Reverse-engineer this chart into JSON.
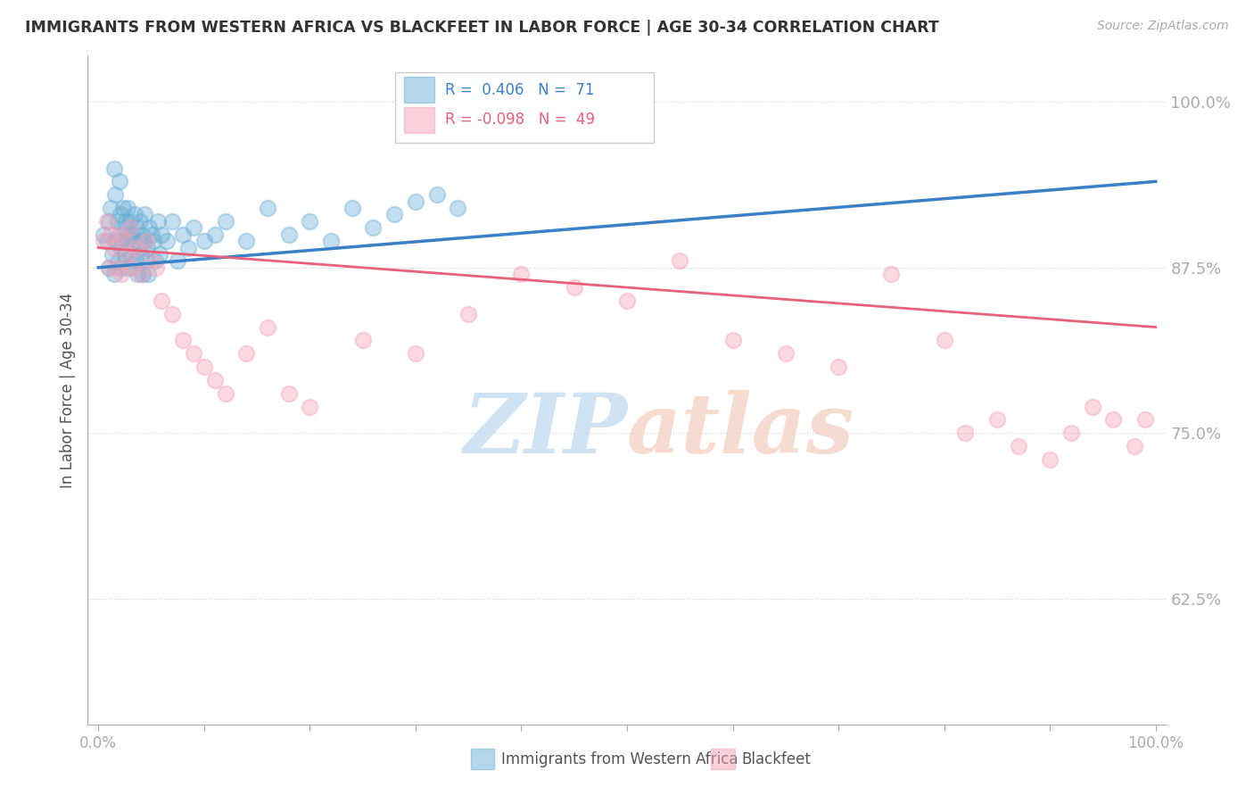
{
  "title": "IMMIGRANTS FROM WESTERN AFRICA VS BLACKFEET IN LABOR FORCE | AGE 30-34 CORRELATION CHART",
  "source": "Source: ZipAtlas.com",
  "ylabel": "In Labor Force | Age 30-34",
  "legend_label1": "Immigrants from Western Africa",
  "legend_label2": "Blackfeet",
  "R1": 0.406,
  "N1": 71,
  "R2": -0.098,
  "N2": 49,
  "color_blue": "#6aaed6",
  "color_pink": "#f4a0b5",
  "ylim_min": 0.53,
  "ylim_max": 1.035,
  "xlim_min": -0.01,
  "xlim_max": 1.01,
  "yticks": [
    0.625,
    0.75,
    0.875,
    1.0
  ],
  "ytick_labels": [
    "62.5%",
    "75.0%",
    "87.5%",
    "100.0%"
  ],
  "blue_x": [
    0.005,
    0.008,
    0.01,
    0.01,
    0.012,
    0.013,
    0.015,
    0.015,
    0.016,
    0.017,
    0.018,
    0.019,
    0.02,
    0.02,
    0.021,
    0.022,
    0.022,
    0.023,
    0.024,
    0.025,
    0.025,
    0.026,
    0.027,
    0.028,
    0.028,
    0.029,
    0.03,
    0.031,
    0.032,
    0.033,
    0.034,
    0.035,
    0.036,
    0.037,
    0.038,
    0.039,
    0.04,
    0.041,
    0.042,
    0.043,
    0.044,
    0.045,
    0.046,
    0.047,
    0.048,
    0.05,
    0.052,
    0.054,
    0.056,
    0.058,
    0.06,
    0.065,
    0.07,
    0.075,
    0.08,
    0.085,
    0.09,
    0.1,
    0.11,
    0.12,
    0.14,
    0.16,
    0.18,
    0.2,
    0.22,
    0.24,
    0.26,
    0.28,
    0.3,
    0.32,
    0.34
  ],
  "blue_y": [
    0.9,
    0.895,
    0.91,
    0.875,
    0.92,
    0.885,
    0.95,
    0.87,
    0.93,
    0.895,
    0.91,
    0.88,
    0.94,
    0.9,
    0.915,
    0.89,
    0.875,
    0.92,
    0.895,
    0.905,
    0.885,
    0.91,
    0.895,
    0.92,
    0.875,
    0.9,
    0.91,
    0.885,
    0.9,
    0.895,
    0.915,
    0.88,
    0.905,
    0.87,
    0.895,
    0.91,
    0.885,
    0.9,
    0.87,
    0.895,
    0.915,
    0.88,
    0.89,
    0.87,
    0.905,
    0.9,
    0.895,
    0.88,
    0.91,
    0.885,
    0.9,
    0.895,
    0.91,
    0.88,
    0.9,
    0.89,
    0.905,
    0.895,
    0.9,
    0.91,
    0.895,
    0.92,
    0.9,
    0.91,
    0.895,
    0.92,
    0.905,
    0.915,
    0.925,
    0.93,
    0.92
  ],
  "pink_x": [
    0.005,
    0.008,
    0.01,
    0.012,
    0.015,
    0.018,
    0.02,
    0.022,
    0.025,
    0.028,
    0.03,
    0.033,
    0.036,
    0.04,
    0.045,
    0.05,
    0.055,
    0.06,
    0.07,
    0.08,
    0.09,
    0.1,
    0.11,
    0.12,
    0.14,
    0.16,
    0.18,
    0.2,
    0.25,
    0.3,
    0.35,
    0.4,
    0.45,
    0.5,
    0.55,
    0.6,
    0.65,
    0.7,
    0.75,
    0.8,
    0.82,
    0.85,
    0.87,
    0.9,
    0.92,
    0.94,
    0.96,
    0.98,
    0.99
  ],
  "pink_y": [
    0.895,
    0.91,
    0.875,
    0.9,
    0.89,
    0.875,
    0.9,
    0.87,
    0.895,
    0.885,
    0.905,
    0.875,
    0.89,
    0.87,
    0.895,
    0.88,
    0.875,
    0.85,
    0.84,
    0.82,
    0.81,
    0.8,
    0.79,
    0.78,
    0.81,
    0.83,
    0.78,
    0.77,
    0.82,
    0.81,
    0.84,
    0.87,
    0.86,
    0.85,
    0.88,
    0.82,
    0.81,
    0.8,
    0.87,
    0.82,
    0.75,
    0.76,
    0.74,
    0.73,
    0.75,
    0.77,
    0.76,
    0.74,
    0.76
  ],
  "blue_line_x": [
    0.0,
    1.0
  ],
  "blue_line_y": [
    0.875,
    0.94
  ],
  "pink_line_x": [
    0.0,
    1.0
  ],
  "pink_line_y": [
    0.89,
    0.83
  ]
}
